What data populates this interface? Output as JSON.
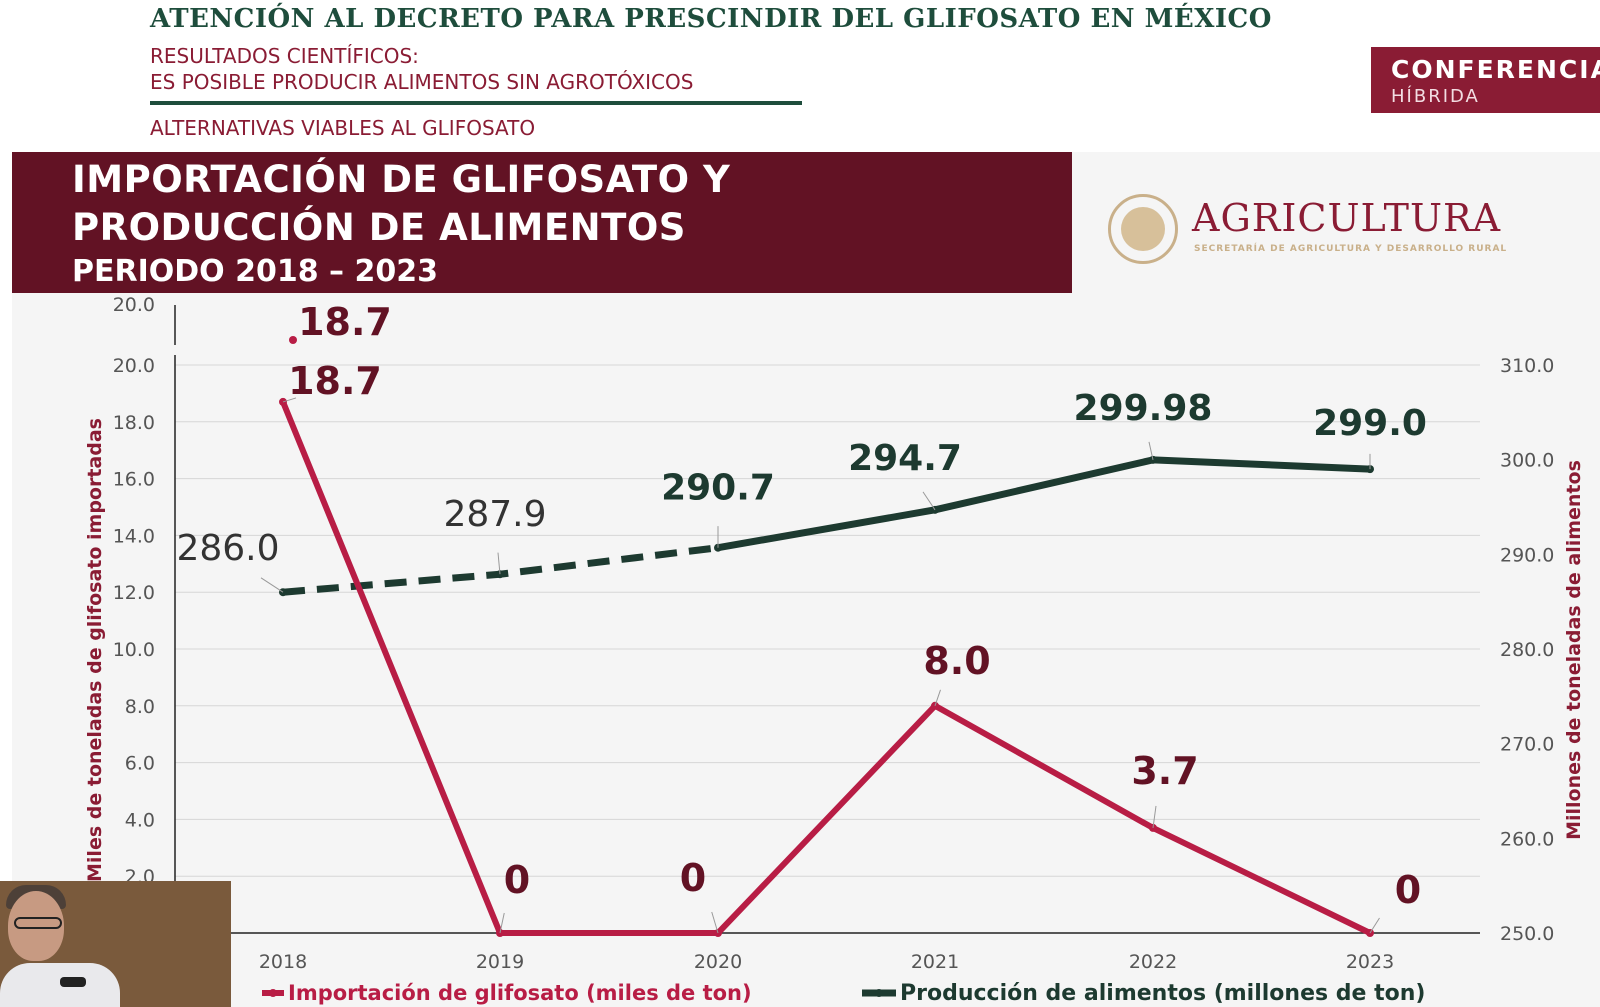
{
  "header": {
    "decree_title": "ATENCIÓN AL DECRETO PARA PRESCINDIR DEL GLIFOSATO EN MÉXICO",
    "subtitle_line1": "RESULTADOS CIENTÍFICOS:",
    "subtitle_line2": "ES POSIBLE PRODUCIR ALIMENTOS SIN AGROTÓXICOS",
    "subtitle_line3": "ALTERNATIVAS VIABLES AL GLIFOSATO",
    "badge_main": "CONFERENCIA",
    "badge_sub": "HÍBRIDA"
  },
  "slide": {
    "title_line1": "IMPORTACIÓN DE GLIFOSATO Y",
    "title_line2": "PRODUCCIÓN DE ALIMENTOS",
    "title_line3": "PERIODO 2018 – 2023"
  },
  "logo": {
    "name": "AGRICULTURA",
    "subtitle": "SECRETARÍA DE AGRICULTURA Y DESARROLLO RURAL"
  },
  "colors": {
    "green": "#1e4d3c",
    "maroon": "#8a1c34",
    "crimson": "#b81d45",
    "dark_green_line": "#1d3a30"
  },
  "chart_data": {
    "type": "line",
    "x": [
      "2018",
      "2019",
      "2020",
      "2021",
      "2022",
      "2023"
    ],
    "ylabel": "Miles de toneladas de glifosato importadas",
    "y2label": "Millones de toneladas de alimentos",
    "ylim": [
      0,
      20
    ],
    "y2lim": [
      250,
      310
    ],
    "y_ticks": [
      "20.0",
      "18.0",
      "16.0",
      "14.0",
      "12.0",
      "10.0",
      "8.0",
      "6.0",
      "4.0",
      "2.0"
    ],
    "y_top_extra": "20.0",
    "y2_ticks": [
      "310.0",
      "300.0",
      "290.0",
      "280.0",
      "270.0",
      "260.0",
      "250.0"
    ],
    "series": [
      {
        "name": "Importación de glifosato (miles de ton)",
        "axis": "left",
        "values": [
          18.7,
          0,
          0,
          8.0,
          3.7,
          0
        ],
        "labels": [
          "18.7",
          "0",
          "0",
          "8.0",
          "3.7",
          "0"
        ],
        "ghost_label": "18.7"
      },
      {
        "name": "Producción de alimentos (millones de ton)",
        "axis": "right",
        "values": [
          286.0,
          287.9,
          290.7,
          294.7,
          299.98,
          299.0
        ],
        "labels": [
          "286.0",
          "287.9",
          "290.7",
          "294.7",
          "299.98",
          "299.0"
        ],
        "dashed_until_index": 2
      }
    ],
    "grid": true,
    "legend_position": "bottom"
  }
}
